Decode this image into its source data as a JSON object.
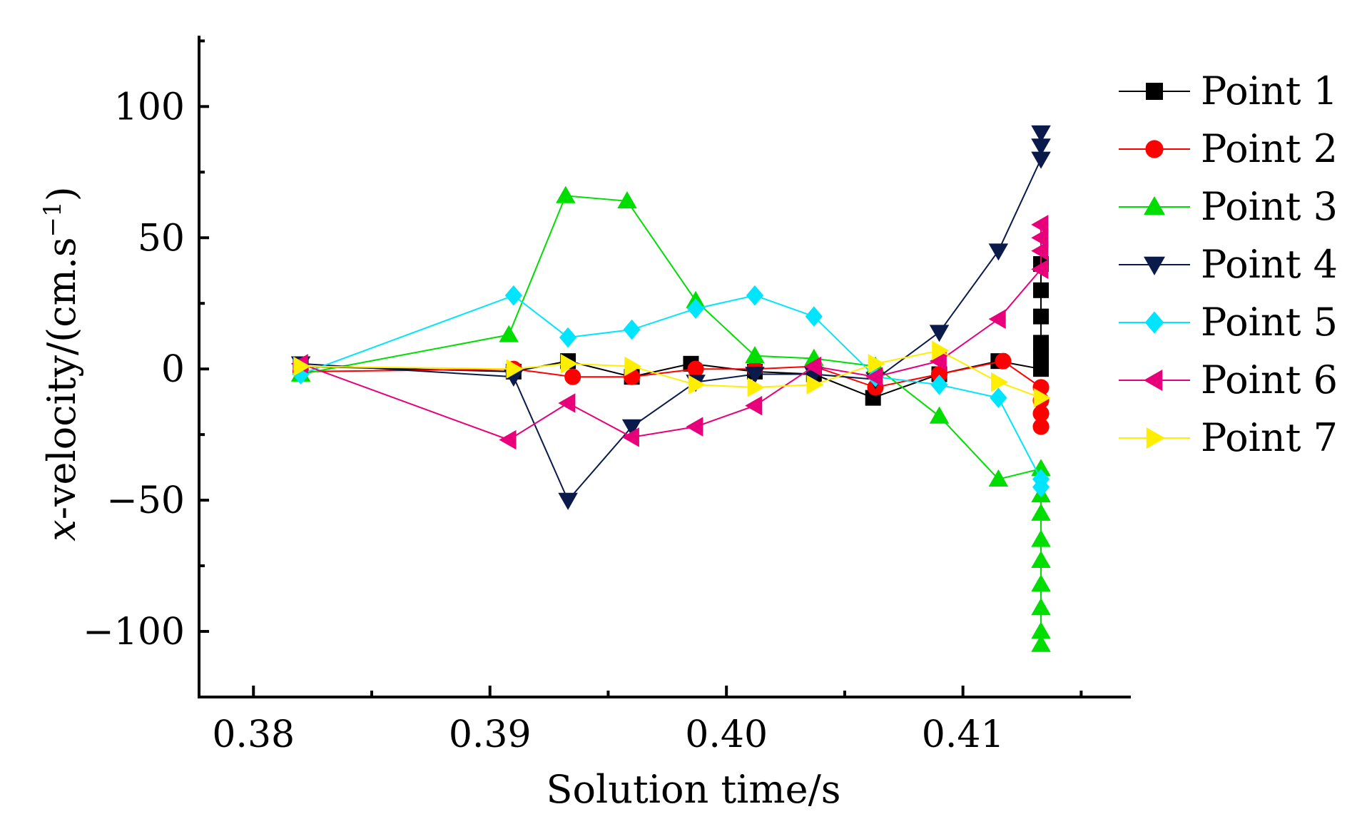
{
  "chart_data": {
    "type": "line",
    "xlabel": "Solution time/s",
    "ylabel": {
      "pre": "x",
      "mid": "-velocity/(cm.s",
      "sup": "−1",
      "post": ")"
    },
    "xlim": [
      0.3777,
      0.4171
    ],
    "ylim": [
      -125,
      127
    ],
    "xticks": [
      {
        "value": 0.38,
        "label": "0.38"
      },
      {
        "value": 0.39,
        "label": "0.39"
      },
      {
        "value": 0.4,
        "label": "0.40"
      },
      {
        "value": 0.41,
        "label": "0.41"
      }
    ],
    "yticks": [
      {
        "value": 100,
        "label": "100"
      },
      {
        "value": 50,
        "label": "50"
      },
      {
        "value": 0,
        "label": "0"
      },
      {
        "value": -50,
        "label": "−50"
      },
      {
        "value": -100,
        "label": "−100"
      }
    ],
    "legend_position": "right",
    "series": [
      {
        "name": "Point 1",
        "color": "#000000",
        "marker": "square",
        "x": [
          0.382,
          0.391,
          0.3933,
          0.396,
          0.3985,
          0.4012,
          0.4037,
          0.4062,
          0.409,
          0.4115,
          0.4133,
          0.4133,
          0.4133,
          0.4133,
          0.4133,
          0.4133
        ],
        "y": [
          1,
          -1,
          3,
          -3,
          2,
          -1,
          -2,
          -11,
          -2,
          3,
          0,
          10,
          20,
          30,
          40,
          5
        ]
      },
      {
        "name": "Point 2",
        "color": "#ff0000",
        "marker": "circle",
        "x": [
          0.382,
          0.391,
          0.3935,
          0.396,
          0.3987,
          0.4012,
          0.4037,
          0.4063,
          0.409,
          0.4117,
          0.4133,
          0.4133,
          0.4133,
          0.4133
        ],
        "y": [
          -1,
          0,
          -3,
          -3,
          0,
          0,
          1,
          -7,
          -2,
          3,
          -7,
          -12,
          -17,
          -22
        ]
      },
      {
        "name": "Point 3",
        "color": "#00dd00",
        "marker": "triangle-up",
        "x": [
          0.382,
          0.3908,
          0.3932,
          0.3958,
          0.3987,
          0.4012,
          0.4037,
          0.4063,
          0.409,
          0.4115,
          0.4133,
          0.4133,
          0.4133,
          0.4133,
          0.4133,
          0.4133,
          0.4133,
          0.4133,
          0.4133
        ],
        "y": [
          -2,
          13,
          66,
          64,
          26,
          5,
          4,
          1,
          -18,
          -42,
          -38,
          -48,
          -55,
          -65,
          -73,
          -82,
          -91,
          -100,
          -105
        ]
      },
      {
        "name": "Point 4",
        "color": "#0a1a4a",
        "marker": "triangle-down",
        "x": [
          0.382,
          0.391,
          0.3933,
          0.396,
          0.3987,
          0.4012,
          0.4037,
          0.4063,
          0.409,
          0.4115,
          0.4133,
          0.4133,
          0.4133
        ],
        "y": [
          2,
          -3,
          -50,
          -22,
          -5,
          -2,
          -2,
          -4,
          14,
          45,
          80,
          85,
          90
        ]
      },
      {
        "name": "Point 5",
        "color": "#00e5ff",
        "marker": "diamond",
        "x": [
          0.382,
          0.391,
          0.3933,
          0.396,
          0.3987,
          0.4012,
          0.4037,
          0.4063,
          0.409,
          0.4115,
          0.4133,
          0.4133
        ],
        "y": [
          -2,
          28,
          12,
          15,
          23,
          28,
          20,
          -3,
          -6,
          -11,
          -42,
          -45
        ]
      },
      {
        "name": "Point 6",
        "color": "#e8007a",
        "marker": "triangle-left",
        "x": [
          0.382,
          0.3908,
          0.3933,
          0.396,
          0.3987,
          0.4012,
          0.4037,
          0.4063,
          0.409,
          0.4115,
          0.4133,
          0.4133,
          0.4133,
          0.4133
        ],
        "y": [
          2,
          -27,
          -13,
          -26,
          -22,
          -14,
          1,
          -3,
          3,
          19,
          38,
          45,
          50,
          55
        ]
      },
      {
        "name": "Point 7",
        "color": "#ffee00",
        "marker": "triangle-right",
        "x": [
          0.382,
          0.391,
          0.3933,
          0.396,
          0.3987,
          0.4012,
          0.4037,
          0.4063,
          0.409,
          0.4115,
          0.4133
        ],
        "y": [
          1,
          0,
          2,
          1,
          -6,
          -7,
          -6,
          2,
          7,
          -5,
          -11
        ]
      }
    ]
  }
}
